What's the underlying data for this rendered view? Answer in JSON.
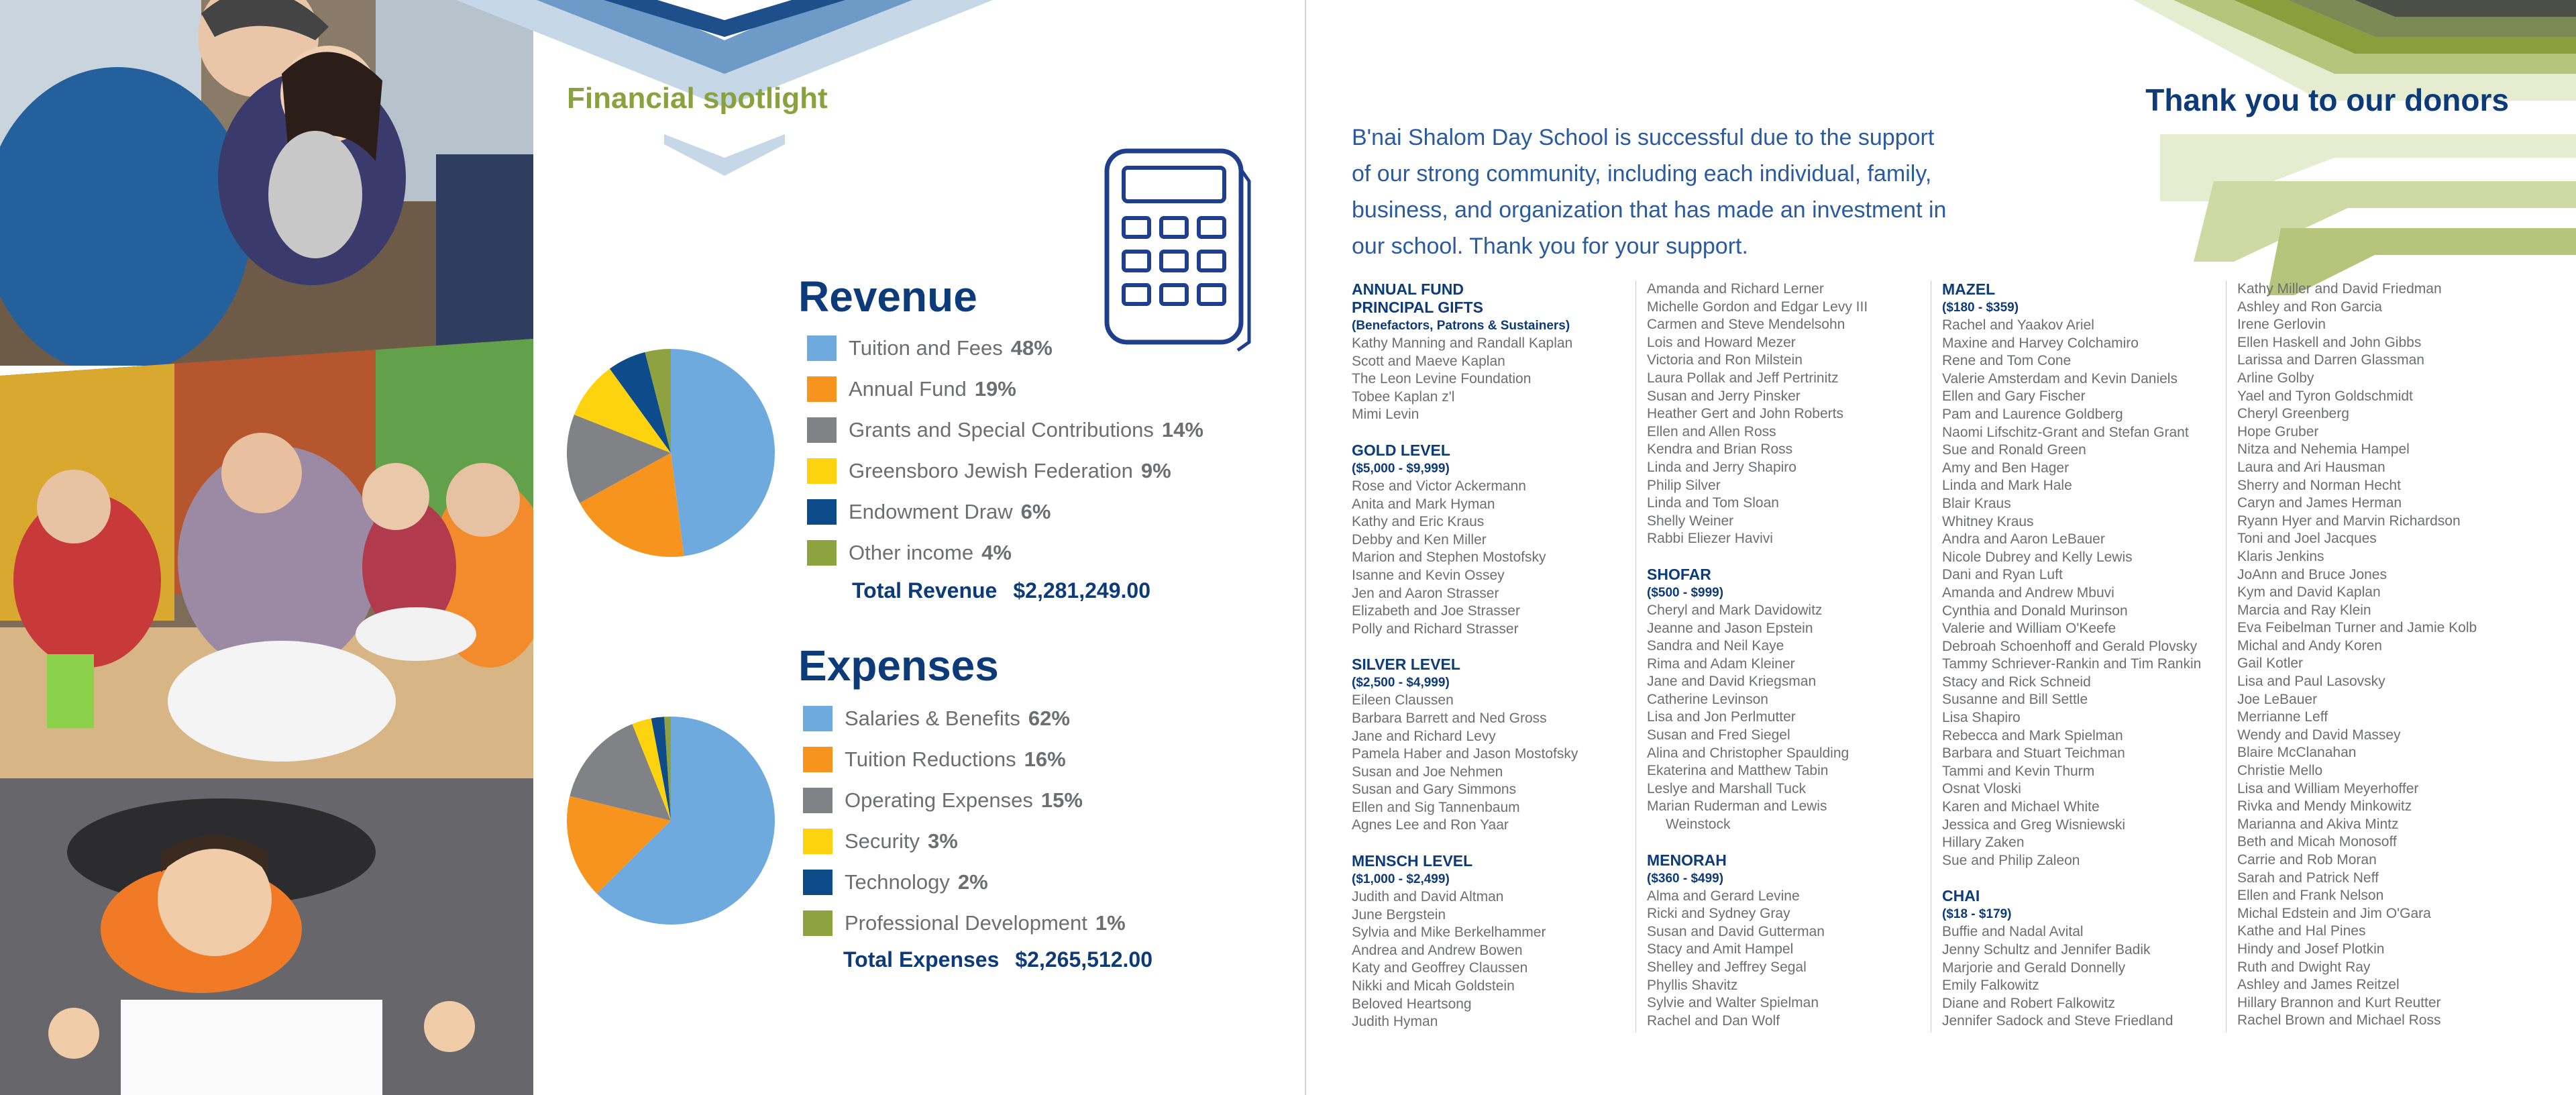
{
  "left_page": {
    "title": "Financial spotlight",
    "revenue": {
      "heading": "Revenue",
      "items": [
        {
          "label": "Tuition and Fees",
          "pct": "48%",
          "color": "#6faadf"
        },
        {
          "label": "Annual Fund",
          "pct": "19%",
          "color": "#f7941d"
        },
        {
          "label": "Grants and Special Contributions",
          "pct": "14%",
          "color": "#808285"
        },
        {
          "label": "Greensboro Jewish Federation",
          "pct": "9%",
          "color": "#fdd20e"
        },
        {
          "label": "Endowment Draw",
          "pct": "6%",
          "color": "#0d4b8b"
        },
        {
          "label": "Other income",
          "pct": "4%",
          "color": "#8ea23f"
        }
      ],
      "total_label": "Total Revenue",
      "total_value": "$2,281,249.00"
    },
    "expenses": {
      "heading": "Expenses",
      "items": [
        {
          "label": "Salaries & Benefits",
          "pct": "62%",
          "color": "#6faadf"
        },
        {
          "label": "Tuition Reductions",
          "pct": "16%",
          "color": "#f7941d"
        },
        {
          "label": "Operating Expenses",
          "pct": "15%",
          "color": "#808285"
        },
        {
          "label": "Security",
          "pct": "3%",
          "color": "#fdd20e"
        },
        {
          "label": "Technology",
          "pct": "2%",
          "color": "#0d4b8b"
        },
        {
          "label": "Professional Development",
          "pct": "1%",
          "color": "#8ea23f"
        }
      ],
      "total_label": "Total Expenses",
      "total_value": "$2,265,512.00"
    }
  },
  "chart_data": [
    {
      "type": "pie",
      "title": "Revenue",
      "categories": [
        "Tuition and Fees",
        "Annual Fund",
        "Grants and Special Contributions",
        "Greensboro Jewish Federation",
        "Endowment Draw",
        "Other income"
      ],
      "values": [
        48,
        19,
        14,
        9,
        6,
        4
      ],
      "colors": [
        "#6faadf",
        "#f7941d",
        "#808285",
        "#fdd20e",
        "#0d4b8b",
        "#8ea23f"
      ]
    },
    {
      "type": "pie",
      "title": "Expenses",
      "categories": [
        "Salaries & Benefits",
        "Tuition Reductions",
        "Operating Expenses",
        "Security",
        "Technology",
        "Professional Development"
      ],
      "values": [
        62,
        16,
        15,
        3,
        2,
        1
      ],
      "colors": [
        "#6faadf",
        "#f7941d",
        "#808285",
        "#fdd20e",
        "#0d4b8b",
        "#8ea23f"
      ]
    }
  ],
  "right_page": {
    "title": "Thank you to our donors",
    "intro": "B'nai Shalom Day School is successful due to the support of our strong community, including each individual, family, business, and organization that has made an investment in our school. Thank you for your support.",
    "columns": [
      [
        {
          "name": "ANNUAL FUND PRINCIPAL GIFTS",
          "range": "(Benefactors, Patrons & Sustainers)",
          "donors": [
            "Kathy Manning and Randall Kaplan",
            "Scott and Maeve Kaplan",
            "The Leon Levine Foundation",
            "Tobee Kaplan z'l",
            "Mimi Levin"
          ]
        },
        {
          "name": "GOLD LEVEL",
          "range": "($5,000 - $9,999)",
          "donors": [
            "Rose and Victor Ackermann",
            "Anita and Mark Hyman",
            "Kathy and Eric Kraus",
            "Debby and Ken Miller",
            "Marion and Stephen Mostofsky",
            "Isanne and Kevin Ossey",
            "Jen and Aaron Strasser",
            "Elizabeth and Joe Strasser",
            "Polly and Richard Strasser"
          ]
        },
        {
          "name": "SILVER LEVEL",
          "range": "($2,500 - $4,999)",
          "donors": [
            "Eileen Claussen",
            "Barbara Barrett and Ned Gross",
            "Jane and Richard Levy",
            "Pamela Haber and Jason Mostofsky",
            "Susan and Joe Nehmen",
            "Susan and Gary Simmons",
            "Ellen and Sig Tannenbaum",
            "Agnes Lee and Ron Yaar"
          ]
        },
        {
          "name": "MENSCH LEVEL",
          "range": "($1,000 - $2,499)",
          "donors": [
            "Judith and David Altman",
            "June Bergstein",
            "Sylvia and Mike Berkelhammer",
            "Andrea and Andrew Bowen",
            "Katy and Geoffrey Claussen",
            "Nikki and Micah Goldstein",
            "Beloved Heartsong",
            "Judith Hyman"
          ]
        }
      ],
      [
        {
          "name": "",
          "range": "",
          "donors": [
            "Amanda and Richard Lerner",
            "Michelle Gordon and Edgar Levy III",
            "Carmen and Steve Mendelsohn",
            "Lois and Howard Mezer",
            "Victoria and Ron Milstein",
            "Laura Pollak and Jeff Pertrinitz",
            "Susan and Jerry Pinsker",
            "Heather Gert and John Roberts",
            "Ellen and Allen Ross",
            "Kendra and Brian Ross",
            "Linda and Jerry Shapiro",
            "Philip Silver",
            "Linda and Tom Sloan",
            "Shelly Weiner",
            "Rabbi Eliezer Havivi"
          ]
        },
        {
          "name": "SHOFAR",
          "range": "($500 - $999)",
          "donors": [
            "Cheryl and Mark Davidowitz",
            "Jeanne and Jason Epstein",
            "Sandra and Neil Kaye",
            "Rima and Adam Kleiner",
            "Jane and David Kriegsman",
            "Catherine Levinson",
            "Lisa and Jon Perlmutter",
            "Susan and Fred Siegel",
            "Alina and Christopher Spaulding",
            "Ekaterina and Matthew Tabin",
            "Leslye and Marshall Tuck",
            "Marian Ruderman and Lewis",
            "Weinstock"
          ]
        },
        {
          "name": "MENORAH",
          "range": "($360 - $499)",
          "donors": [
            "Alma and Gerard Levine",
            "Ricki and Sydney Gray",
            "Susan and David Gutterman",
            "Stacy and Amit Hampel",
            "Shelley and Jeffrey Segal",
            "Phyllis Shavitz",
            "Sylvie and Walter Spielman",
            "Rachel and Dan Wolf"
          ]
        }
      ],
      [
        {
          "name": "MAZEL",
          "range": "($180 - $359)",
          "donors": [
            "Rachel and Yaakov Ariel",
            "Maxine and Harvey Colchamiro",
            "Rene and Tom Cone",
            "Valerie Amsterdam and Kevin Daniels",
            "Ellen and Gary Fischer",
            "Pam and Laurence Goldberg",
            "Naomi Lifschitz-Grant and Stefan Grant",
            "Sue and Ronald Green",
            "Amy and Ben Hager",
            "Linda and Mark Hale",
            "Blair Kraus",
            "Whitney Kraus",
            "Andra and Aaron LeBauer",
            "Nicole Dubrey and Kelly Lewis",
            "Dani and Ryan Luft",
            "Amanda and Andrew Mbuvi",
            "Cynthia and Donald Murinson",
            "Valerie and William O'Keefe",
            "Debroah Schoenhoff and Gerald Plovsky",
            "Tammy Schriever-Rankin and Tim Rankin",
            "Stacy and Rick Schneid",
            "Susanne and Bill Settle",
            "Lisa Shapiro",
            "Rebecca and Mark Spielman",
            "Barbara and Stuart Teichman",
            "Tammi and Kevin Thurm",
            "Osnat Vloski",
            "Karen and Michael White",
            "Jessica and Greg Wisniewski",
            "Hillary Zaken",
            "Sue and Philip Zaleon"
          ]
        },
        {
          "name": "CHAI",
          "range": "($18 - $179)",
          "donors": [
            "Buffie and Nadal Avital",
            "Jenny Schultz and Jennifer Badik",
            "Marjorie and Gerald Donnelly",
            "Emily Falkowitz",
            "Diane and Robert Falkowitz",
            "Jennifer Sadock and Steve Friedland"
          ]
        }
      ],
      [
        {
          "name": "",
          "range": "",
          "donors": [
            "Kathy Miller and David Friedman",
            "Ashley and Ron Garcia",
            "Irene Gerlovin",
            "Ellen Haskell and John Gibbs",
            "Larissa and Darren Glassman",
            "Arline Golby",
            "Yael and Tyron Goldschmidt",
            "Cheryl Greenberg",
            "Hope Gruber",
            "Nitza and Nehemia Hampel",
            "Laura and Ari Hausman",
            "Sherry and Norman Hecht",
            "Caryn and James Herman",
            "Ryann Hyer and Marvin Richardson",
            "Toni and Joel Jacques",
            "Klaris Jenkins",
            "JoAnn and Bruce Jones",
            "Kym and David Kaplan",
            "Marcia and Ray Klein",
            "Eva Feibelman Turner and Jamie Kolb",
            "Michal and Andy Koren",
            "Gail Kotler",
            "Lisa and Paul Lasovsky",
            "Joe LeBauer",
            "Merrianne Leff",
            "Wendy and David Massey",
            "Blaire McClanahan",
            "Christie Mello",
            "Lisa and William Meyerhoffer",
            "Rivka and Mendy Minkowitz",
            "Marianna and Akiva Mintz",
            "Beth and Micah Monosoff",
            "Carrie and Rob Moran",
            "Sarah and Patrick Neff",
            "Ellen and Frank Nelson",
            "Michal Edstein and Jim O'Gara",
            "Kathe and Hal Pines",
            "Hindy and Josef Plotkin",
            "Ruth and Dwight Ray",
            "Ashley and James Reitzel",
            "Hillary Brannon and Kurt Reutter",
            "Rachel Brown and Michael Ross"
          ]
        }
      ]
    ]
  }
}
